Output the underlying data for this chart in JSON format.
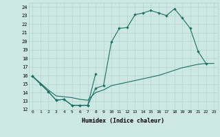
{
  "xlabel": "Humidex (Indice chaleur)",
  "xlim": [
    -0.5,
    23.5
  ],
  "ylim": [
    12,
    24.5
  ],
  "yticks": [
    12,
    13,
    14,
    15,
    16,
    17,
    18,
    19,
    20,
    21,
    22,
    23,
    24
  ],
  "xticks": [
    0,
    1,
    2,
    3,
    4,
    5,
    6,
    7,
    8,
    9,
    10,
    11,
    12,
    13,
    14,
    15,
    16,
    17,
    18,
    19,
    20,
    21,
    22,
    23
  ],
  "bg_color": "#cde8e3",
  "grid_color": "#b0d4ce",
  "line_color": "#1a6e62",
  "line1_x": [
    0,
    1,
    2,
    3,
    4,
    5,
    6,
    7,
    8,
    9,
    10,
    11,
    12,
    13,
    14,
    15,
    16,
    17,
    18,
    19,
    20,
    21,
    22
  ],
  "line1_y": [
    15.9,
    15.0,
    14.1,
    13.1,
    13.2,
    12.5,
    12.5,
    12.5,
    14.5,
    14.8,
    19.9,
    21.5,
    21.6,
    23.1,
    23.3,
    23.6,
    23.3,
    23.0,
    23.8,
    22.7,
    21.5,
    18.8,
    17.4
  ],
  "line2_x": [
    0,
    1,
    2,
    3,
    4,
    5,
    6,
    7,
    8
  ],
  "line2_y": [
    15.9,
    15.0,
    14.1,
    13.1,
    13.2,
    12.5,
    12.5,
    12.5,
    16.2
  ],
  "line3_x": [
    0,
    1,
    2,
    3,
    4,
    5,
    6,
    7,
    8,
    9,
    10,
    11,
    12,
    13,
    14,
    15,
    16,
    17,
    18,
    19,
    20,
    21,
    22,
    23
  ],
  "line3_y": [
    15.9,
    15.1,
    14.3,
    13.6,
    13.5,
    13.4,
    13.2,
    13.1,
    14.0,
    14.3,
    14.8,
    15.0,
    15.2,
    15.4,
    15.6,
    15.8,
    16.0,
    16.3,
    16.6,
    16.9,
    17.1,
    17.3,
    17.4,
    17.4
  ]
}
